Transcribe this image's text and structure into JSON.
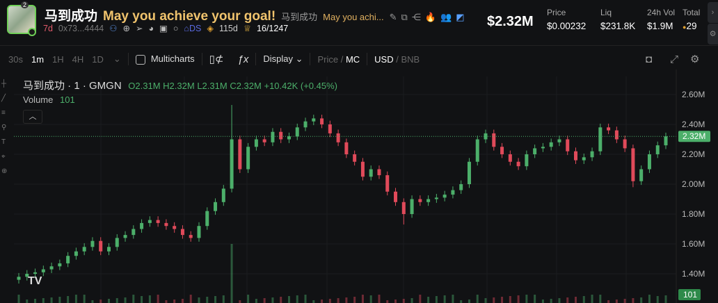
{
  "token": {
    "symbol": "马到成功",
    "name": "May you achieve your goal!",
    "subtitle_symbol": "马到成功",
    "subtitle_name": "May you achi...",
    "avatar_badge": "2",
    "age": "7d",
    "address": "0x73...4444",
    "ds_label": "DS",
    "days": "115d",
    "holders": "16/1247"
  },
  "stats": {
    "market_cap": "$2.32M",
    "items": [
      {
        "label": "Price",
        "value": "$0.00232"
      },
      {
        "label": "Liq",
        "value": "$231.8K"
      },
      {
        "label": "24h Vol",
        "value": "$1.9M"
      },
      {
        "label": "Total",
        "value": "29"
      }
    ]
  },
  "toolbar": {
    "intervals": [
      "30s",
      "1m",
      "1H",
      "4H",
      "1D"
    ],
    "active_interval": "1m",
    "multicharts": "Multicharts",
    "display": "Display",
    "price": "Price",
    "mc": "MC",
    "usd": "USD",
    "bnb": "BNB"
  },
  "legend": {
    "title": "马到成功 · 1 · GMGN",
    "o": "O2.31M",
    "h": "H2.32M",
    "l": "L2.31M",
    "c": "C2.32M",
    "change": "+10.42K (+0.45%)",
    "volume_label": "Volume",
    "volume_value": "101"
  },
  "chart_data": {
    "type": "candlestick",
    "y_ticks": [
      "2.60M",
      "2.40M",
      "2.20M",
      "2.00M",
      "1.80M",
      "1.60M",
      "1.40M"
    ],
    "ylim": [
      1.34,
      2.66
    ],
    "last_price_label": "2.32M",
    "last_price": 2.32,
    "last_volume_label": "101",
    "closes": [
      1.38,
      1.4,
      1.41,
      1.43,
      1.45,
      1.47,
      1.52,
      1.55,
      1.58,
      1.62,
      1.55,
      1.58,
      1.64,
      1.66,
      1.7,
      1.74,
      1.76,
      1.74,
      1.72,
      1.7,
      1.66,
      1.64,
      1.72,
      1.82,
      1.88,
      1.97,
      2.3,
      2.1,
      2.25,
      2.3,
      2.28,
      2.35,
      2.3,
      2.32,
      2.38,
      2.42,
      2.44,
      2.4,
      2.34,
      2.28,
      2.2,
      2.15,
      2.05,
      2.1,
      2.06,
      1.95,
      1.88,
      1.8,
      1.9,
      1.88,
      1.9,
      1.91,
      1.93,
      1.96,
      2.0,
      2.15,
      2.3,
      2.34,
      2.25,
      2.2,
      2.15,
      2.12,
      2.2,
      2.24,
      2.25,
      2.28,
      2.3,
      2.22,
      2.16,
      2.18,
      2.22,
      2.38,
      2.36,
      2.3,
      2.24,
      2.02,
      2.1,
      2.2,
      2.26,
      2.32
    ],
    "colors": {
      "up": "#4caf6a",
      "down": "#e04a5a"
    }
  }
}
